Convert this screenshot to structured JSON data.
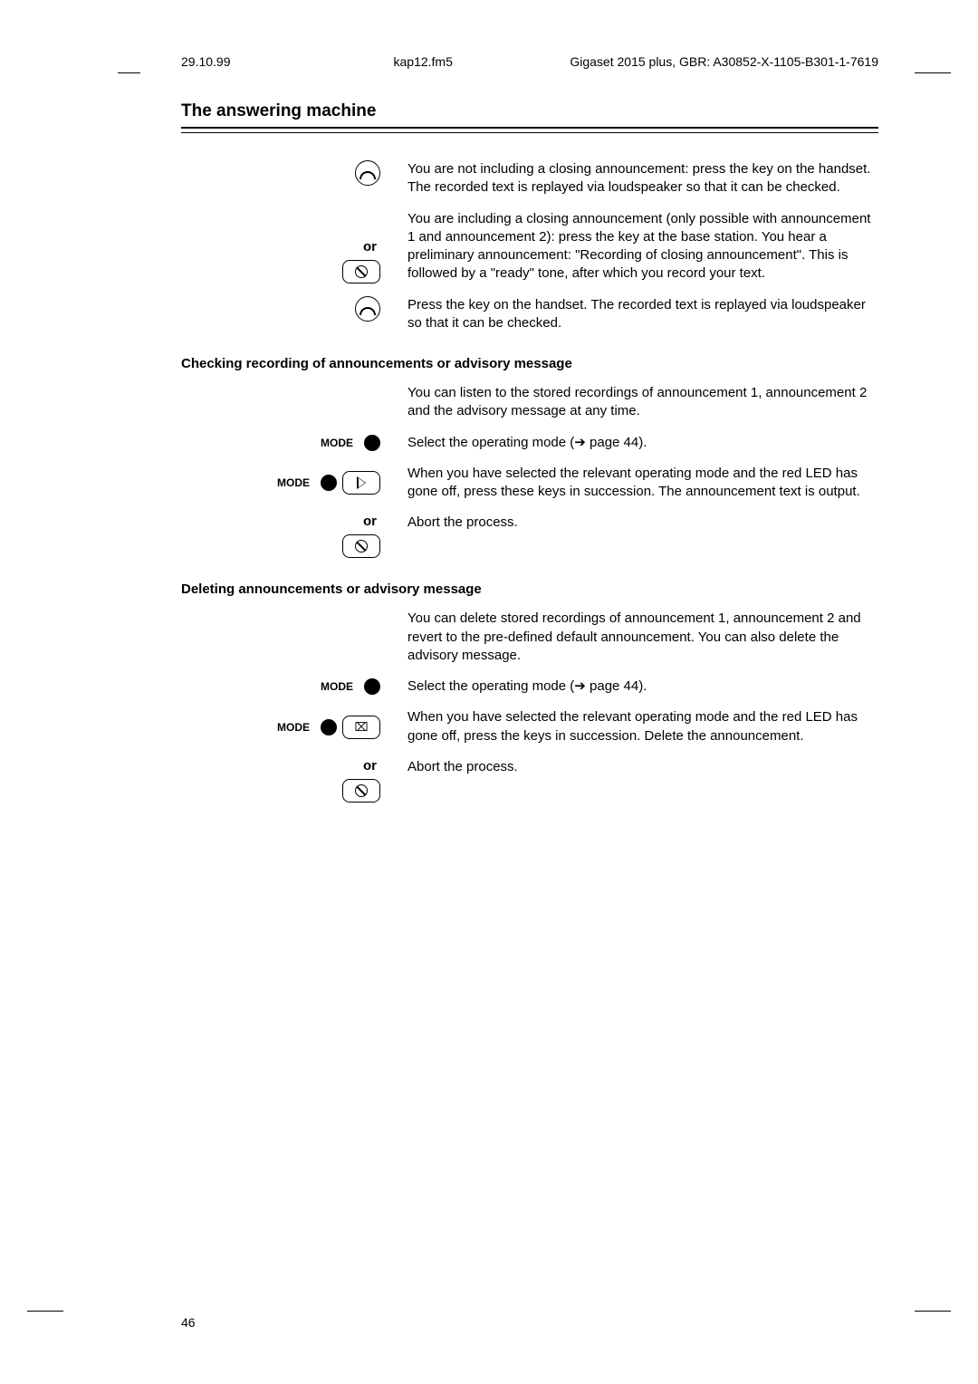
{
  "header": {
    "date": "29.10.99",
    "file": "kap12.fm5",
    "doc": "Gigaset 2015 plus, GBR: A30852-X-1105-B301-1-7619"
  },
  "title": "The answering machine",
  "row1": {
    "text": "You are not including a closing announcement: press the key on the handset. The recorded text is replayed via loudspeaker so that it can be checked."
  },
  "or1": "or",
  "row2": {
    "text": "You are including a closing announcement (only possible with announcement 1 and announcement 2): press the key at the base station. You hear a preliminary announcement: \"Recording of closing announcement\". This is followed by a \"ready\" tone, after which you record your text."
  },
  "row3": {
    "text": "Press the key on the handset. The recorded text is replayed via loudspeaker so that it can be checked."
  },
  "section1": {
    "heading": "Checking recording of announcements or advisory message",
    "intro": "You can listen to the stored recordings of announcement 1, announcement 2 and the advisory message at any time.",
    "mode_label": "MODE",
    "step1": "Select the operating mode (➔ page 44).",
    "step2": "When you have selected the relevant operating mode and the red LED has gone off, press these keys in succession. The announcement text is output.",
    "or": "or",
    "abort": "Abort the process."
  },
  "section2": {
    "heading": "Deleting announcements or advisory message",
    "intro": "You can delete stored recordings of announcement 1, announcement 2 and revert to the pre-defined default announcement. You can also delete the advisory message.",
    "mode_label": "MODE",
    "step1": "Select the operating mode (➔ page 44).",
    "step2": "When you have selected the relevant operating mode and the red LED has gone off, press the keys in succession. Delete the announcement.",
    "or": "or",
    "abort": "Abort the process."
  },
  "pagenum": "46"
}
